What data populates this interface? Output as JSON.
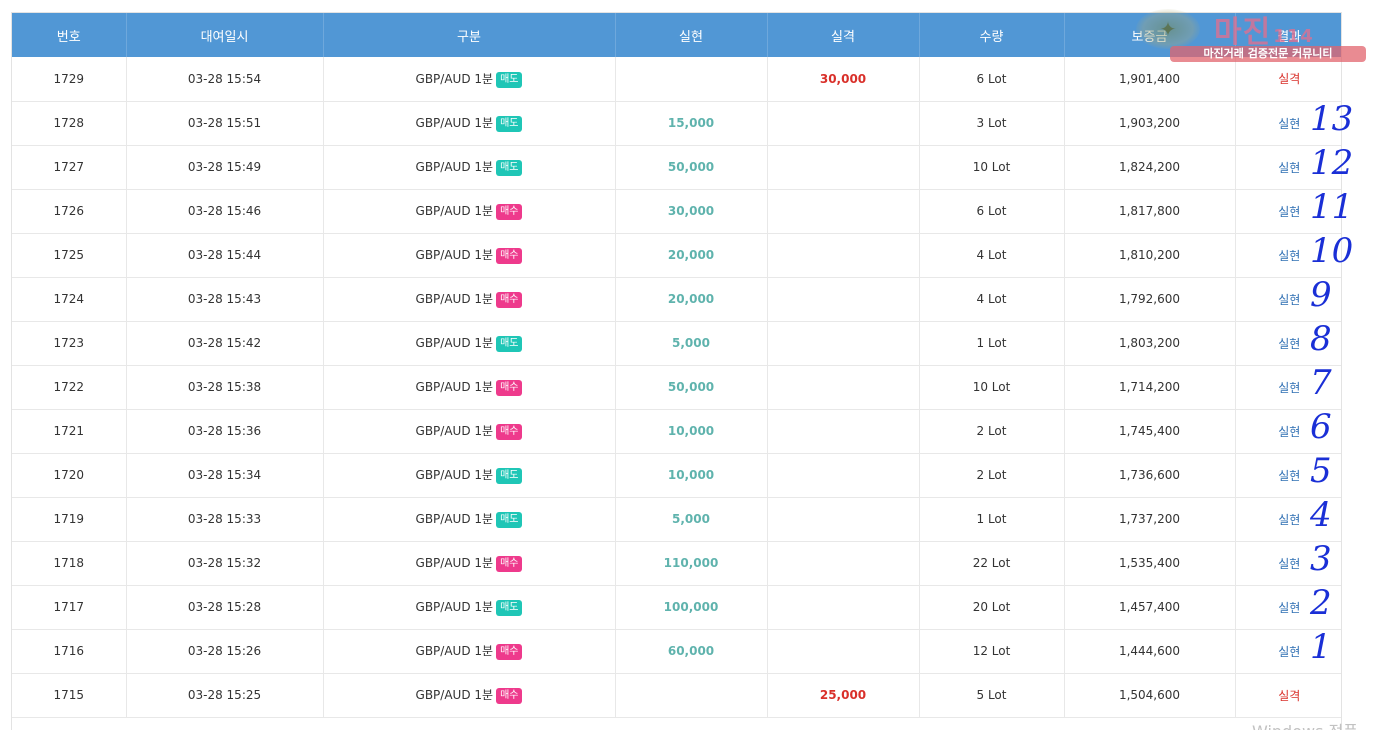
{
  "columns": [
    "번호",
    "대여일시",
    "구분",
    "실현",
    "실격",
    "수량",
    "보증금",
    "결과"
  ],
  "rows": [
    {
      "no": "1729",
      "time": "03-28 15:54",
      "product": "GBP/AUD 1분",
      "type": "매도",
      "gain": "",
      "loss": "30,000",
      "qty": "6 Lot",
      "deposit": "1,901,400",
      "result": "실격"
    },
    {
      "no": "1728",
      "time": "03-28 15:51",
      "product": "GBP/AUD 1분",
      "type": "매도",
      "gain": "15,000",
      "loss": "",
      "qty": "3 Lot",
      "deposit": "1,903,200",
      "result": "실현"
    },
    {
      "no": "1727",
      "time": "03-28 15:49",
      "product": "GBP/AUD 1분",
      "type": "매도",
      "gain": "50,000",
      "loss": "",
      "qty": "10 Lot",
      "deposit": "1,824,200",
      "result": "실현"
    },
    {
      "no": "1726",
      "time": "03-28 15:46",
      "product": "GBP/AUD 1분",
      "type": "매수",
      "gain": "30,000",
      "loss": "",
      "qty": "6 Lot",
      "deposit": "1,817,800",
      "result": "실현"
    },
    {
      "no": "1725",
      "time": "03-28 15:44",
      "product": "GBP/AUD 1분",
      "type": "매수",
      "gain": "20,000",
      "loss": "",
      "qty": "4 Lot",
      "deposit": "1,810,200",
      "result": "실현"
    },
    {
      "no": "1724",
      "time": "03-28 15:43",
      "product": "GBP/AUD 1분",
      "type": "매수",
      "gain": "20,000",
      "loss": "",
      "qty": "4 Lot",
      "deposit": "1,792,600",
      "result": "실현"
    },
    {
      "no": "1723",
      "time": "03-28 15:42",
      "product": "GBP/AUD 1분",
      "type": "매도",
      "gain": "5,000",
      "loss": "",
      "qty": "1 Lot",
      "deposit": "1,803,200",
      "result": "실현"
    },
    {
      "no": "1722",
      "time": "03-28 15:38",
      "product": "GBP/AUD 1분",
      "type": "매수",
      "gain": "50,000",
      "loss": "",
      "qty": "10 Lot",
      "deposit": "1,714,200",
      "result": "실현"
    },
    {
      "no": "1721",
      "time": "03-28 15:36",
      "product": "GBP/AUD 1분",
      "type": "매수",
      "gain": "10,000",
      "loss": "",
      "qty": "2 Lot",
      "deposit": "1,745,400",
      "result": "실현"
    },
    {
      "no": "1720",
      "time": "03-28 15:34",
      "product": "GBP/AUD 1분",
      "type": "매도",
      "gain": "10,000",
      "loss": "",
      "qty": "2 Lot",
      "deposit": "1,736,600",
      "result": "실현"
    },
    {
      "no": "1719",
      "time": "03-28 15:33",
      "product": "GBP/AUD 1분",
      "type": "매도",
      "gain": "5,000",
      "loss": "",
      "qty": "1 Lot",
      "deposit": "1,737,200",
      "result": "실현"
    },
    {
      "no": "1718",
      "time": "03-28 15:32",
      "product": "GBP/AUD 1분",
      "type": "매수",
      "gain": "110,000",
      "loss": "",
      "qty": "22 Lot",
      "deposit": "1,535,400",
      "result": "실현"
    },
    {
      "no": "1717",
      "time": "03-28 15:28",
      "product": "GBP/AUD 1분",
      "type": "매도",
      "gain": "100,000",
      "loss": "",
      "qty": "20 Lot",
      "deposit": "1,457,400",
      "result": "실현"
    },
    {
      "no": "1716",
      "time": "03-28 15:26",
      "product": "GBP/AUD 1분",
      "type": "매수",
      "gain": "60,000",
      "loss": "",
      "qty": "12 Lot",
      "deposit": "1,444,600",
      "result": "실현"
    },
    {
      "no": "1715",
      "time": "03-28 15:25",
      "product": "GBP/AUD 1분",
      "type": "매수",
      "gain": "",
      "loss": "25,000",
      "qty": "5 Lot",
      "deposit": "1,504,600",
      "result": "실격"
    }
  ],
  "annotations": [
    "13",
    "12",
    "11",
    "10",
    "9",
    "8",
    "7",
    "6",
    "5",
    "4",
    "3",
    "2",
    "1"
  ],
  "watermark": {
    "title": "마진",
    "number": "114",
    "subtitle": "마진거래 검증전문 커뮤니티"
  },
  "os_watermark": "Windows 정품",
  "colors": {
    "header": "#5197d5",
    "sell_badge": "#1fc6b6",
    "buy_badge": "#ee3a8c",
    "gain": "#5fb3ad",
    "loss": "#d9302a",
    "win_result": "#2f6fb3",
    "annotation": "#1a2fd6"
  }
}
